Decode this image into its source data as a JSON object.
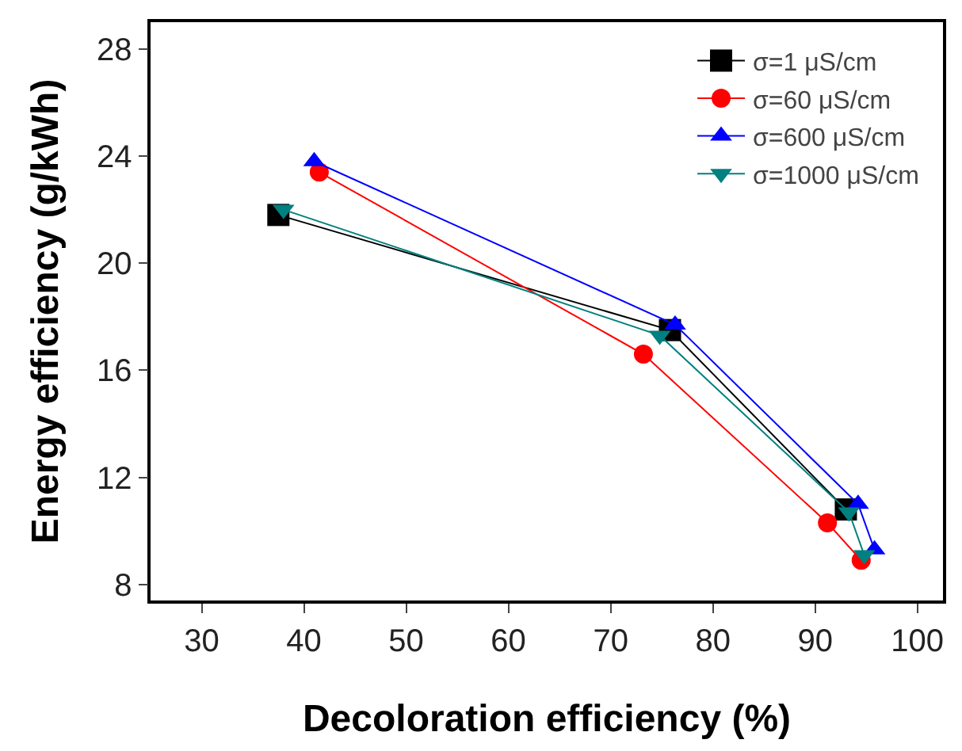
{
  "chart_data": {
    "type": "line",
    "xlabel": "Decoloration efficiency (%)",
    "ylabel": "Energy efficiency (g/kWh)",
    "xlim": [
      25,
      102.5
    ],
    "xticks": [
      30,
      40,
      50,
      60,
      70,
      80,
      90,
      100
    ],
    "ylim": [
      7.4,
      29
    ],
    "yticks": [
      8,
      12,
      16,
      20,
      24,
      28
    ],
    "grid": false,
    "legend": "top right",
    "series": [
      {
        "name": "σ=1 μS/cm",
        "color": "#000000",
        "marker": "square",
        "x": [
          37.5,
          75.8,
          93
        ],
        "values": [
          21.8,
          17.5,
          10.8
        ]
      },
      {
        "name": "σ=60 μS/cm",
        "color": "#ff0000",
        "marker": "circle",
        "x": [
          41.5,
          73.2,
          91.2,
          94.5
        ],
        "values": [
          23.4,
          16.6,
          10.3,
          8.9
        ]
      },
      {
        "name": "σ=600 μS/cm",
        "color": "#0000ff",
        "marker": "triangle",
        "x": [
          41,
          76.3,
          94.2,
          95.8
        ],
        "values": [
          23.8,
          17.7,
          11.0,
          9.3
        ]
      },
      {
        "name": "σ=1000 μS/cm",
        "color": "#008080",
        "marker": "triangle-down",
        "x": [
          38,
          74.8,
          93.3,
          94.8
        ],
        "values": [
          22.0,
          17.3,
          10.7,
          9.1
        ]
      }
    ]
  }
}
